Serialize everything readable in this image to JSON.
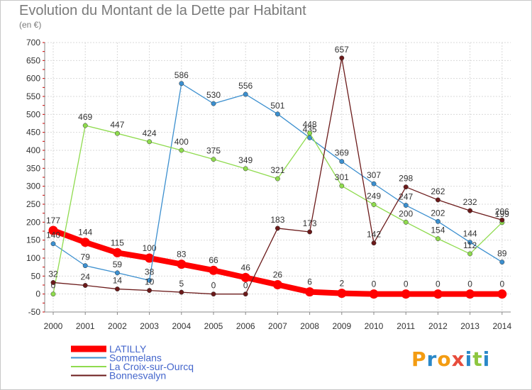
{
  "title": "Evolution du Montant de la Dette par Habitant",
  "subtitle": "(en €)",
  "logo": {
    "text": "Proxiti",
    "colors": [
      "#f39c12",
      "#2a88c8",
      "#f39c12",
      "#e74c3c",
      "#2a88c8",
      "#8dc63f",
      "#2a88c8"
    ]
  },
  "chart_data": {
    "type": "line",
    "title": "Evolution du Montant de la Dette par Habitant",
    "subtitle": "(en €)",
    "x": [
      "2000",
      "2001",
      "2002",
      "2003",
      "2004",
      "2005",
      "2006",
      "2007",
      "2008",
      "2009",
      "2010",
      "2011",
      "2012",
      "2013",
      "2014"
    ],
    "ylim": [
      -50,
      700
    ],
    "yticks": [
      -50,
      0,
      50,
      100,
      150,
      200,
      250,
      300,
      350,
      400,
      450,
      500,
      550,
      600,
      650,
      700
    ],
    "grid": true,
    "legend_position": "bottom-left",
    "series": [
      {
        "name": "LATILLY",
        "color": "#ff0000",
        "values": [
          177,
          144,
          115,
          100,
          83,
          66,
          46,
          26,
          6,
          2,
          0,
          0,
          0,
          0,
          0
        ]
      },
      {
        "name": "Sommelans",
        "color": "#3b8fcf",
        "values": [
          140,
          79,
          59,
          38,
          586,
          530,
          556,
          501,
          435,
          369,
          307,
          247,
          202,
          144,
          89
        ]
      },
      {
        "name": "La Croix-sur-Ourcq",
        "color": "#8fdb4e",
        "values": [
          0,
          469,
          447,
          424,
          400,
          375,
          349,
          321,
          448,
          301,
          249,
          200,
          154,
          112,
          199
        ]
      },
      {
        "name": "Bonnesvalyn",
        "color": "#6b1a1a",
        "values": [
          32,
          24,
          14,
          10,
          5,
          0,
          0,
          183,
          173,
          657,
          142,
          298,
          262,
          232,
          206
        ]
      }
    ]
  }
}
